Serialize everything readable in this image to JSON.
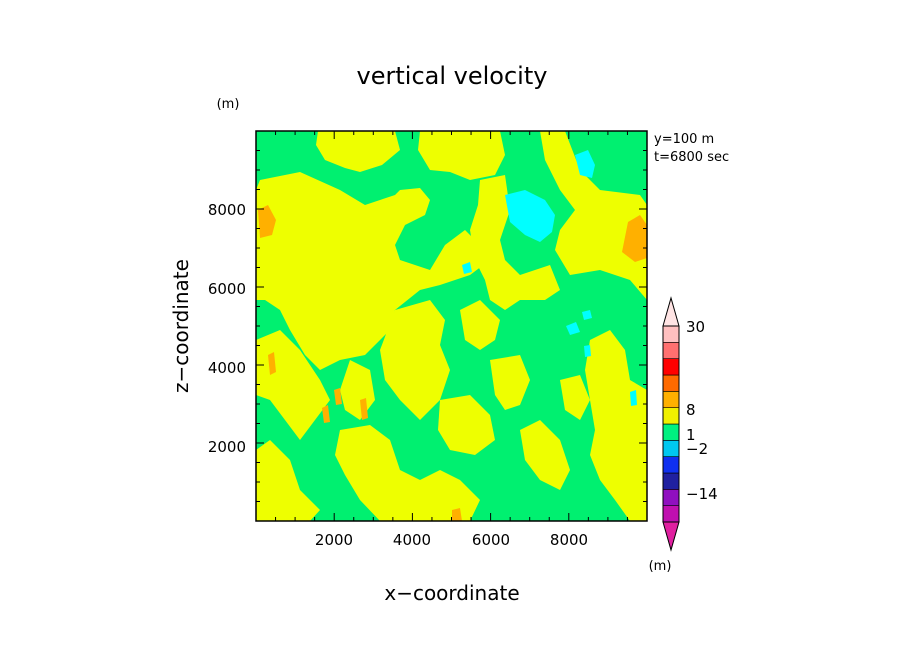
{
  "chart_data": {
    "type": "heatmap",
    "title": "vertical velocity",
    "xlabel": "x−coordinate",
    "ylabel": "z−coordinate",
    "x_unit": "(m)",
    "z_unit": "(m)",
    "colorbar_unit": "(m)",
    "annotation_y": "y=100 m",
    "annotation_t": "t=6800 sec",
    "xlim": [
      0,
      10000
    ],
    "ylim": [
      0,
      10000
    ],
    "xticks": [
      "2000",
      "4000",
      "6000",
      "8000"
    ],
    "yticks": [
      "2000",
      "4000",
      "6000",
      "8000"
    ],
    "colorbar": {
      "labels": [
        {
          "text": "30",
          "value": 30
        },
        {
          "text": "8",
          "value": 8
        },
        {
          "text": "1",
          "value": 1
        },
        {
          "text": "−2",
          "value": -2
        },
        {
          "text": "−14",
          "value": -14
        }
      ],
      "bands": [
        {
          "color": "#c010b0"
        },
        {
          "color": "#9010c0"
        },
        {
          "color": "#2020a0"
        },
        {
          "color": "#1030f0"
        },
        {
          "color": "#00c8f0"
        },
        {
          "color": "#00f080"
        },
        {
          "color": "#f0f000"
        },
        {
          "color": "#ffb000"
        },
        {
          "color": "#ff6a00"
        },
        {
          "color": "#ff0000"
        },
        {
          "color": "#ff7070"
        },
        {
          "color": "#ffc0c0"
        }
      ]
    },
    "field_colors": {
      "positive_small": "#eeff00",
      "near_zero": "#00f070",
      "negative": "#00ffff",
      "positive_large": "#ffb000"
    }
  }
}
